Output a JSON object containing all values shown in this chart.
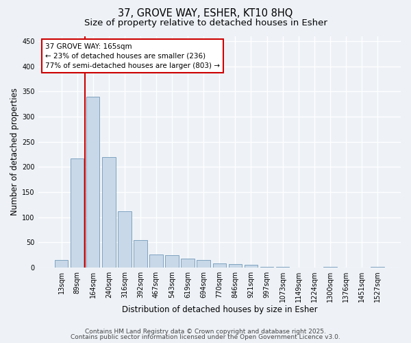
{
  "title_line1": "37, GROVE WAY, ESHER, KT10 8HQ",
  "title_line2": "Size of property relative to detached houses in Esher",
  "xlabel": "Distribution of detached houses by size in Esher",
  "ylabel": "Number of detached properties",
  "categories": [
    "13sqm",
    "89sqm",
    "164sqm",
    "240sqm",
    "316sqm",
    "392sqm",
    "467sqm",
    "543sqm",
    "619sqm",
    "694sqm",
    "770sqm",
    "846sqm",
    "921sqm",
    "997sqm",
    "1073sqm",
    "1149sqm",
    "1224sqm",
    "1300sqm",
    "1376sqm",
    "1451sqm",
    "1527sqm"
  ],
  "values": [
    15,
    216,
    340,
    220,
    112,
    55,
    26,
    25,
    17,
    15,
    8,
    6,
    5,
    1,
    1,
    0,
    0,
    1,
    0,
    0,
    1
  ],
  "bar_color": "#c8d8e8",
  "bar_edge_color": "#7098b8",
  "red_line_index": 2,
  "annotation_text": "37 GROVE WAY: 165sqm\n← 23% of detached houses are smaller (236)\n77% of semi-detached houses are larger (803) →",
  "annotation_box_facecolor": "#ffffff",
  "annotation_box_edgecolor": "#cc0000",
  "ylim": [
    0,
    460
  ],
  "yticks": [
    0,
    50,
    100,
    150,
    200,
    250,
    300,
    350,
    400,
    450
  ],
  "footer_line1": "Contains HM Land Registry data © Crown copyright and database right 2025.",
  "footer_line2": "Contains public sector information licensed under the Open Government Licence v3.0.",
  "background_color": "#eef2f7",
  "grid_color": "#ffffff",
  "title_fontsize": 10.5,
  "subtitle_fontsize": 9.5,
  "tick_fontsize": 7,
  "label_fontsize": 8.5,
  "footer_fontsize": 6.5,
  "annotation_fontsize": 7.5
}
